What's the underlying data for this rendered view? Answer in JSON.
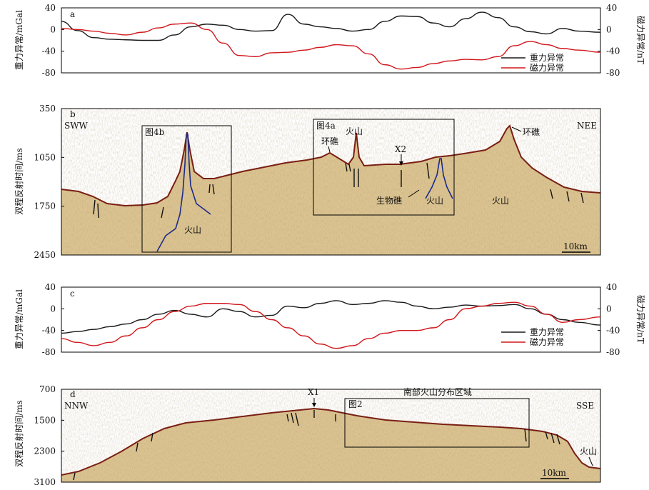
{
  "colors": {
    "gravity": "#1a1a1a",
    "magnetic": "#d0171c",
    "volcano_outline": "#1b2a8a",
    "seismic_fill": "#d9c08a",
    "seismic_dark": "#6b5230"
  },
  "chart_data": [
    {
      "type": "line",
      "panel": "a",
      "ylabel_left": "重力异常/mGal",
      "ylabel_right": "磁力异常/nT",
      "ylim_left": [
        -80,
        40
      ],
      "ylim_right": [
        -80,
        40
      ],
      "yticks_left": [
        "40",
        "0",
        "-40",
        "-80"
      ],
      "yticks_right": [
        "40",
        "0",
        "-40",
        "-80"
      ],
      "x": [
        0,
        0.03,
        0.06,
        0.09,
        0.12,
        0.15,
        0.18,
        0.21,
        0.24,
        0.27,
        0.3,
        0.33,
        0.36,
        0.39,
        0.42,
        0.45,
        0.48,
        0.51,
        0.54,
        0.57,
        0.6,
        0.63,
        0.66,
        0.69,
        0.72,
        0.75,
        0.78,
        0.81,
        0.84,
        0.87,
        0.9,
        0.93,
        0.96,
        1
      ],
      "series": [
        {
          "name": "重力异常",
          "values": [
            15,
            -2,
            -15,
            -18,
            -19,
            -20,
            -20,
            -10,
            5,
            10,
            8,
            0,
            -3,
            -2,
            28,
            10,
            5,
            2,
            -3,
            0,
            15,
            25,
            24,
            12,
            5,
            20,
            32,
            22,
            5,
            -4,
            -8,
            2,
            -3,
            -5
          ]
        },
        {
          "name": "磁力异常",
          "values": [
            2,
            0,
            -3,
            -7,
            -10,
            -5,
            3,
            10,
            12,
            0,
            -25,
            -48,
            -50,
            -43,
            -42,
            -38,
            -33,
            -28,
            -30,
            -45,
            -65,
            -73,
            -70,
            -63,
            -58,
            -55,
            -56,
            -50,
            -30,
            -22,
            -28,
            -35,
            -38,
            -42
          ]
        }
      ],
      "legend": "bottom-right"
    },
    {
      "type": "heatmap",
      "panel": "b",
      "description_labels": {
        "left": "SWW",
        "right": "NEE",
        "box1": "图4b",
        "box2": "图4a",
        "reef1": "环礁",
        "volcano_top": "火山",
        "x2": "X2",
        "bio_reef": "生物礁",
        "volcano_mid": "火山",
        "volcano_right": "火山",
        "reef2": "环礁",
        "volcano_box": "火山",
        "scale": "10km"
      },
      "ylabel": "双程反射时间/ms",
      "yticks": [
        "350",
        "1050",
        "1750",
        "2450"
      ],
      "ylim": [
        350,
        2450
      ]
    },
    {
      "type": "line",
      "panel": "c",
      "ylabel_left": "重力异常/mGal",
      "ylabel_right": "磁力异常/nT",
      "ylim_left": [
        -80,
        40
      ],
      "ylim_right": [
        -80,
        40
      ],
      "yticks_left": [
        "40",
        "0",
        "-40",
        "-80"
      ],
      "yticks_right": [
        "40",
        "0",
        "-40",
        "-80"
      ],
      "x": [
        0,
        0.03,
        0.06,
        0.09,
        0.12,
        0.15,
        0.18,
        0.21,
        0.24,
        0.27,
        0.3,
        0.33,
        0.36,
        0.39,
        0.42,
        0.45,
        0.48,
        0.51,
        0.54,
        0.57,
        0.6,
        0.63,
        0.66,
        0.69,
        0.72,
        0.75,
        0.78,
        0.81,
        0.84,
        0.87,
        0.9,
        0.93,
        0.96,
        1
      ],
      "series": [
        {
          "name": "重力异常",
          "values": [
            -45,
            -42,
            -38,
            -33,
            -28,
            -20,
            -10,
            -3,
            -10,
            -15,
            0,
            -5,
            -15,
            -12,
            5,
            2,
            10,
            15,
            8,
            10,
            15,
            12,
            5,
            0,
            3,
            7,
            5,
            6,
            8,
            0,
            -10,
            -20,
            -25,
            -30
          ]
        },
        {
          "name": "磁力异常",
          "values": [
            -55,
            -62,
            -68,
            -62,
            -50,
            -35,
            -20,
            -5,
            5,
            10,
            10,
            8,
            -5,
            -20,
            -35,
            -50,
            -65,
            -73,
            -68,
            -55,
            -45,
            -40,
            -40,
            -35,
            -20,
            0,
            5,
            10,
            12,
            5,
            -10,
            -25,
            -20,
            -15
          ]
        }
      ],
      "legend": "bottom-right"
    },
    {
      "type": "heatmap",
      "panel": "d",
      "description_labels": {
        "left": "NNW",
        "right": "SSE",
        "box": "图2",
        "region": "南部火山分布区域",
        "x1": "X1",
        "volcano": "火山",
        "scale": "10km"
      },
      "ylabel": "双程反射时间/ms",
      "yticks": [
        "700",
        "1500",
        "2300",
        "3100"
      ],
      "ylim": [
        700,
        3100
      ]
    }
  ],
  "panels": {
    "a": {
      "letter": "a",
      "legend": [
        "重力异常",
        "磁力异常"
      ]
    },
    "b": {
      "letter": "b"
    },
    "c": {
      "letter": "c",
      "legend": [
        "重力异常",
        "磁力异常"
      ]
    },
    "d": {
      "letter": "d"
    }
  }
}
